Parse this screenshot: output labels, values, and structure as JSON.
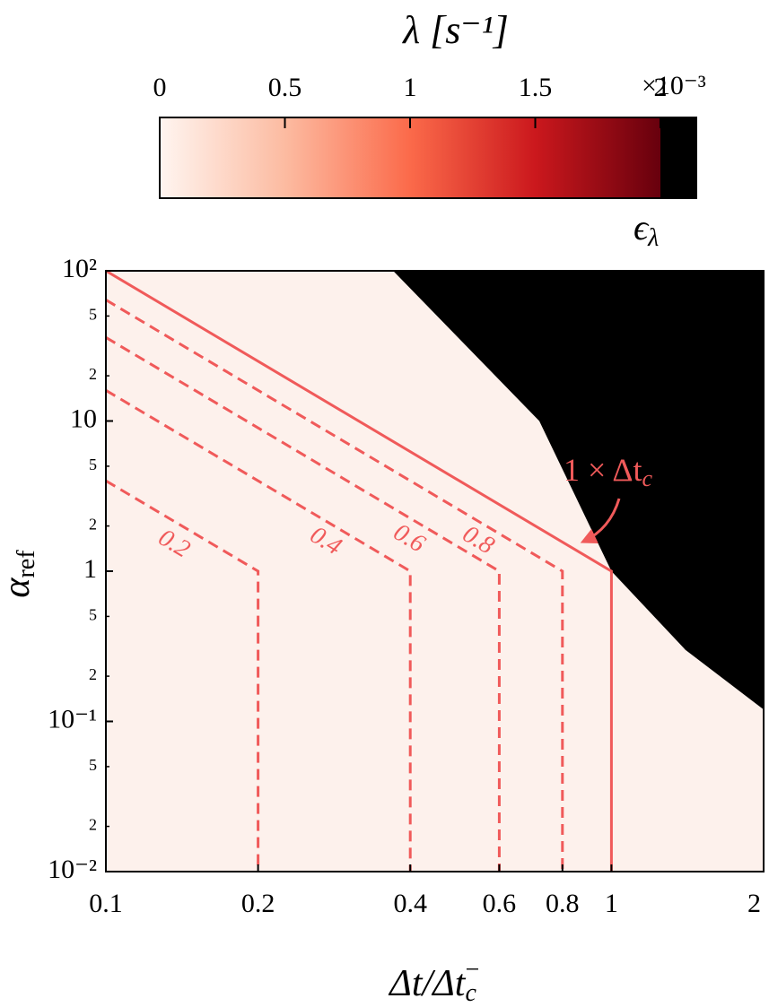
{
  "chart_data": {
    "type": "heatmap",
    "xscale": "log",
    "yscale": "log",
    "xlim": [
      0.1,
      2
    ],
    "ylim": [
      0.01,
      100
    ],
    "xticks": [
      0.1,
      0.2,
      0.4,
      0.6,
      0.8,
      1,
      2
    ],
    "yticks": [
      {
        "value": 0.01,
        "label": "10⁻²"
      },
      {
        "value": 0.1,
        "label": "10⁻¹"
      },
      1,
      10,
      {
        "value": 100,
        "label": "10²"
      }
    ],
    "yminor": [
      {
        "value": 0.02,
        "label": "2"
      },
      {
        "value": 0.05,
        "label": "5"
      },
      {
        "value": 0.2,
        "label": "2"
      },
      {
        "value": 0.5,
        "label": "5"
      },
      {
        "value": 2,
        "label": "2"
      },
      {
        "value": 5,
        "label": "5"
      },
      {
        "value": 20,
        "label": "2"
      },
      {
        "value": 50,
        "label": "5"
      }
    ],
    "xlabel_parts": [
      "Δt/Δt",
      "c",
      "−"
    ],
    "ylabel_parts": [
      "α",
      "ref"
    ],
    "background_color": "#fdf1ec",
    "stability_boundary": {
      "color": "#000000",
      "x": [
        0.37,
        0.72,
        1,
        1.4,
        2
      ],
      "y": [
        100,
        10,
        1,
        0.3,
        0.12
      ]
    },
    "series": [
      {
        "name": "0.2",
        "color": "#f05a5a",
        "dash": true,
        "x": [
          0.1,
          0.2,
          0.2
        ],
        "y": [
          4,
          1,
          0.01
        ]
      },
      {
        "name": "0.4",
        "color": "#f05a5a",
        "dash": true,
        "x": [
          0.1,
          0.4,
          0.4
        ],
        "y": [
          16,
          1,
          0.01
        ]
      },
      {
        "name": "0.6",
        "color": "#f05a5a",
        "dash": true,
        "x": [
          0.1,
          0.6,
          0.6
        ],
        "y": [
          36,
          1,
          0.01
        ]
      },
      {
        "name": "0.8",
        "color": "#f05a5a",
        "dash": true,
        "x": [
          0.1,
          0.8,
          0.8
        ],
        "y": [
          64,
          1,
          0.01
        ]
      },
      {
        "name_parts": [
          "1 × Δt",
          "c"
        ],
        "color": "#f05a5a",
        "dash": false,
        "x": [
          0.1,
          1,
          1
        ],
        "y": [
          100,
          1,
          0.01
        ]
      }
    ],
    "colorbar": {
      "label": "λ [s⁻¹]",
      "lim": [
        0,
        2
      ],
      "ticks": [
        0,
        0.5,
        1,
        1.5,
        2
      ],
      "offset_label": "×10⁻³",
      "cmap": [
        "#fff5f0",
        "#fcbba1",
        "#fb6a4a",
        "#cb181d",
        "#67000d"
      ],
      "extend_color": "#000000",
      "extend_label_parts": [
        "ϵ",
        "λ"
      ]
    }
  }
}
